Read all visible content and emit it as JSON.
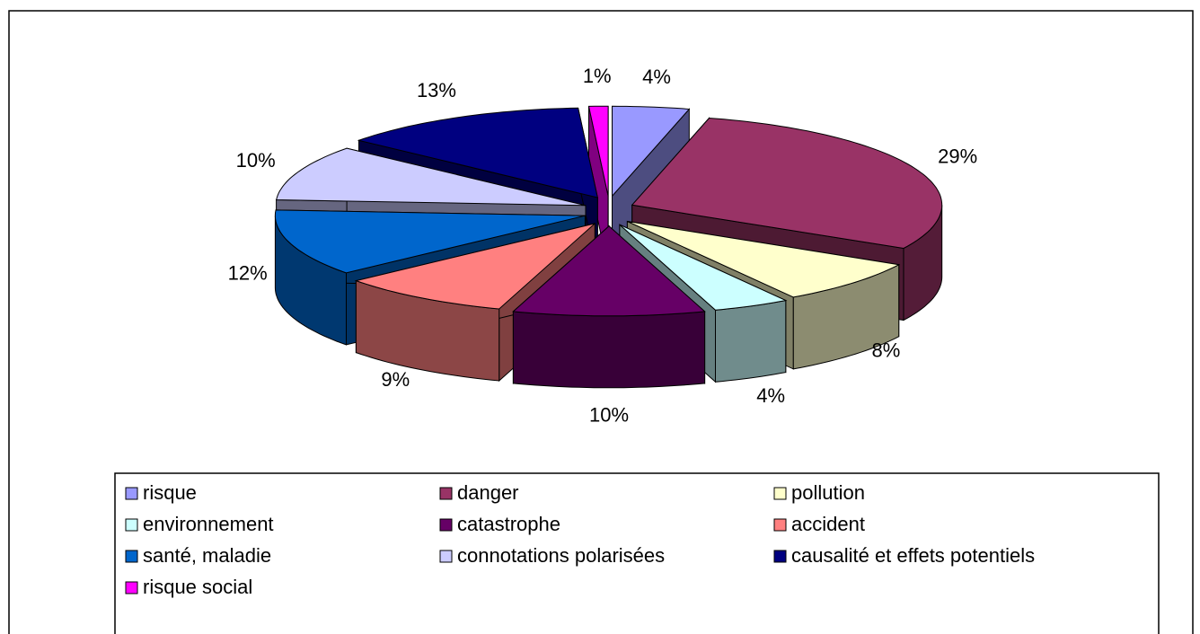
{
  "chart_data": {
    "type": "pie3d",
    "categories": [
      "risque",
      "danger",
      "pollution",
      "environnement",
      "catastrophe",
      "accident",
      "santé, maladie",
      "connotations polarisées",
      "causalité et effets potentiels",
      "risque social"
    ],
    "values": [
      4,
      29,
      8,
      4,
      10,
      9,
      12,
      10,
      13,
      1
    ],
    "value_labels": [
      "4%",
      "29%",
      "8%",
      "4%",
      "10%",
      "9%",
      "12%",
      "10%",
      "13%",
      "1%"
    ],
    "colors": [
      "#9999ff",
      "#993366",
      "#ffffcc",
      "#ccffff",
      "#660066",
      "#ff8080",
      "#0066cc",
      "#ccccff",
      "#000080",
      "#ff00ff"
    ]
  }
}
